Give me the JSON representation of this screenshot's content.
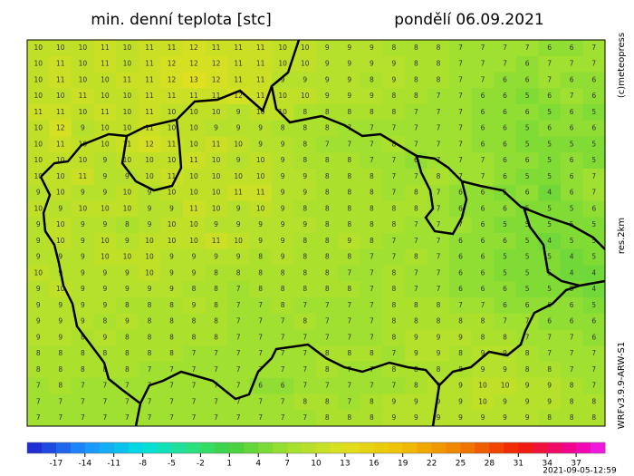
{
  "header": {
    "title": "min. denní teplota [stc]",
    "date": "pondělí 06.09.2021"
  },
  "side_labels": [
    "(c)meteopress",
    "res.2km",
    "WRFv3.9.9-ARW-S1"
  ],
  "timestamp": "2021-09-05-12:59",
  "grid": {
    "values": [
      [
        10,
        10,
        10,
        11,
        10,
        11,
        11,
        12,
        11,
        11,
        11,
        10,
        10,
        9,
        9,
        9,
        8,
        8,
        8,
        7,
        7,
        7,
        7,
        6,
        6,
        7
      ],
      [
        10,
        11,
        10,
        11,
        10,
        11,
        12,
        12,
        12,
        11,
        11,
        10,
        10,
        9,
        9,
        9,
        9,
        8,
        8,
        7,
        7,
        7,
        6,
        7,
        7,
        7
      ],
      [
        10,
        11,
        10,
        10,
        11,
        11,
        12,
        13,
        12,
        11,
        11,
        9,
        9,
        9,
        9,
        8,
        9,
        8,
        8,
        7,
        7,
        6,
        6,
        7,
        6,
        6
      ],
      [
        10,
        10,
        11,
        10,
        10,
        11,
        11,
        11,
        11,
        12,
        11,
        10,
        10,
        9,
        9,
        9,
        8,
        8,
        7,
        7,
        6,
        6,
        5,
        6,
        7,
        6
      ],
      [
        11,
        11,
        10,
        11,
        10,
        11,
        10,
        10,
        10,
        9,
        10,
        10,
        8,
        8,
        8,
        8,
        8,
        7,
        7,
        7,
        6,
        6,
        6,
        5,
        6,
        5
      ],
      [
        10,
        12,
        9,
        10,
        10,
        11,
        10,
        10,
        9,
        9,
        9,
        8,
        8,
        8,
        7,
        7,
        7,
        7,
        7,
        7,
        6,
        6,
        5,
        6,
        6,
        6
      ],
      [
        10,
        11,
        10,
        10,
        11,
        12,
        11,
        10,
        11,
        10,
        9,
        9,
        8,
        7,
        7,
        7,
        8,
        7,
        7,
        7,
        6,
        6,
        5,
        5,
        5,
        5
      ],
      [
        10,
        10,
        10,
        9,
        10,
        10,
        10,
        11,
        10,
        9,
        10,
        9,
        8,
        8,
        8,
        7,
        7,
        6,
        7,
        7,
        7,
        6,
        6,
        5,
        6,
        5
      ],
      [
        10,
        10,
        11,
        9,
        9,
        10,
        11,
        10,
        10,
        10,
        10,
        9,
        9,
        8,
        8,
        8,
        7,
        7,
        8,
        7,
        7,
        6,
        5,
        5,
        6,
        7
      ],
      [
        9,
        10,
        9,
        9,
        10,
        9,
        10,
        10,
        10,
        11,
        11,
        9,
        9,
        8,
        8,
        8,
        7,
        8,
        7,
        6,
        6,
        5,
        6,
        4,
        6,
        7
      ],
      [
        10,
        9,
        10,
        10,
        10,
        9,
        9,
        11,
        10,
        9,
        10,
        9,
        8,
        8,
        8,
        8,
        8,
        8,
        7,
        6,
        6,
        6,
        5,
        5,
        5,
        6
      ],
      [
        9,
        10,
        9,
        9,
        8,
        9,
        10,
        10,
        9,
        9,
        9,
        9,
        9,
        8,
        8,
        8,
        8,
        7,
        7,
        7,
        6,
        5,
        5,
        5,
        5,
        5
      ],
      [
        9,
        10,
        9,
        10,
        9,
        10,
        10,
        10,
        11,
        10,
        9,
        9,
        8,
        8,
        9,
        8,
        7,
        7,
        7,
        6,
        6,
        6,
        5,
        4,
        5,
        5
      ],
      [
        9,
        9,
        9,
        10,
        10,
        10,
        9,
        9,
        9,
        9,
        8,
        9,
        8,
        8,
        8,
        7,
        7,
        8,
        7,
        6,
        6,
        5,
        5,
        5,
        4,
        5
      ],
      [
        10,
        9,
        9,
        9,
        9,
        10,
        9,
        9,
        8,
        8,
        8,
        8,
        8,
        8,
        7,
        7,
        8,
        7,
        7,
        6,
        6,
        5,
        5,
        5,
        4,
        4
      ],
      [
        9,
        10,
        9,
        9,
        9,
        9,
        9,
        8,
        8,
        7,
        8,
        8,
        8,
        8,
        8,
        7,
        8,
        7,
        7,
        6,
        6,
        6,
        5,
        5,
        5,
        4
      ],
      [
        9,
        9,
        9,
        9,
        8,
        8,
        8,
        9,
        8,
        7,
        7,
        8,
        7,
        7,
        7,
        7,
        8,
        8,
        8,
        7,
        7,
        6,
        6,
        6,
        6,
        5
      ],
      [
        9,
        9,
        9,
        8,
        9,
        8,
        8,
        8,
        8,
        7,
        7,
        7,
        8,
        7,
        7,
        7,
        8,
        8,
        8,
        8,
        8,
        7,
        7,
        6,
        6,
        6
      ],
      [
        9,
        9,
        8,
        9,
        8,
        8,
        8,
        8,
        8,
        7,
        7,
        7,
        7,
        7,
        7,
        7,
        8,
        9,
        9,
        9,
        8,
        8,
        7,
        7,
        7,
        6
      ],
      [
        8,
        8,
        8,
        8,
        8,
        8,
        8,
        7,
        7,
        7,
        7,
        7,
        7,
        8,
        8,
        8,
        7,
        9,
        9,
        8,
        9,
        9,
        8,
        7,
        7,
        7
      ],
      [
        8,
        8,
        8,
        8,
        8,
        7,
        7,
        7,
        7,
        7,
        7,
        7,
        7,
        8,
        7,
        7,
        8,
        8,
        8,
        8,
        9,
        9,
        8,
        8,
        7,
        7
      ],
      [
        7,
        8,
        7,
        7,
        7,
        7,
        7,
        7,
        7,
        7,
        6,
        6,
        7,
        7,
        7,
        7,
        7,
        8,
        9,
        9,
        10,
        10,
        9,
        9,
        8,
        7
      ],
      [
        7,
        7,
        7,
        7,
        7,
        7,
        7,
        7,
        7,
        7,
        7,
        7,
        8,
        8,
        7,
        8,
        9,
        9,
        9,
        9,
        10,
        9,
        9,
        9,
        8,
        8
      ],
      [
        7,
        7,
        7,
        7,
        7,
        7,
        7,
        7,
        7,
        7,
        7,
        7,
        7,
        8,
        8,
        8,
        9,
        9,
        9,
        9,
        9,
        9,
        9,
        8,
        8,
        8
      ]
    ]
  },
  "colorbar": {
    "range": [
      -20,
      40
    ],
    "ticks": [
      -17,
      -14,
      -11,
      -8,
      -5,
      -2,
      1,
      4,
      7,
      10,
      13,
      16,
      19,
      22,
      25,
      28,
      31,
      34,
      37
    ],
    "stops": [
      {
        "value": -20,
        "color": "#2020d0"
      },
      {
        "value": -14,
        "color": "#1e90ff"
      },
      {
        "value": -8,
        "color": "#00e0e0"
      },
      {
        "value": -2,
        "color": "#30e070"
      },
      {
        "value": 1,
        "color": "#40d040"
      },
      {
        "value": 7,
        "color": "#a0e030"
      },
      {
        "value": 13,
        "color": "#e0e020"
      },
      {
        "value": 19,
        "color": "#f0c000"
      },
      {
        "value": 25,
        "color": "#f08000"
      },
      {
        "value": 31,
        "color": "#f02000"
      },
      {
        "value": 37,
        "color": "#f000a0"
      },
      {
        "value": 40,
        "color": "#f020f0"
      }
    ]
  }
}
